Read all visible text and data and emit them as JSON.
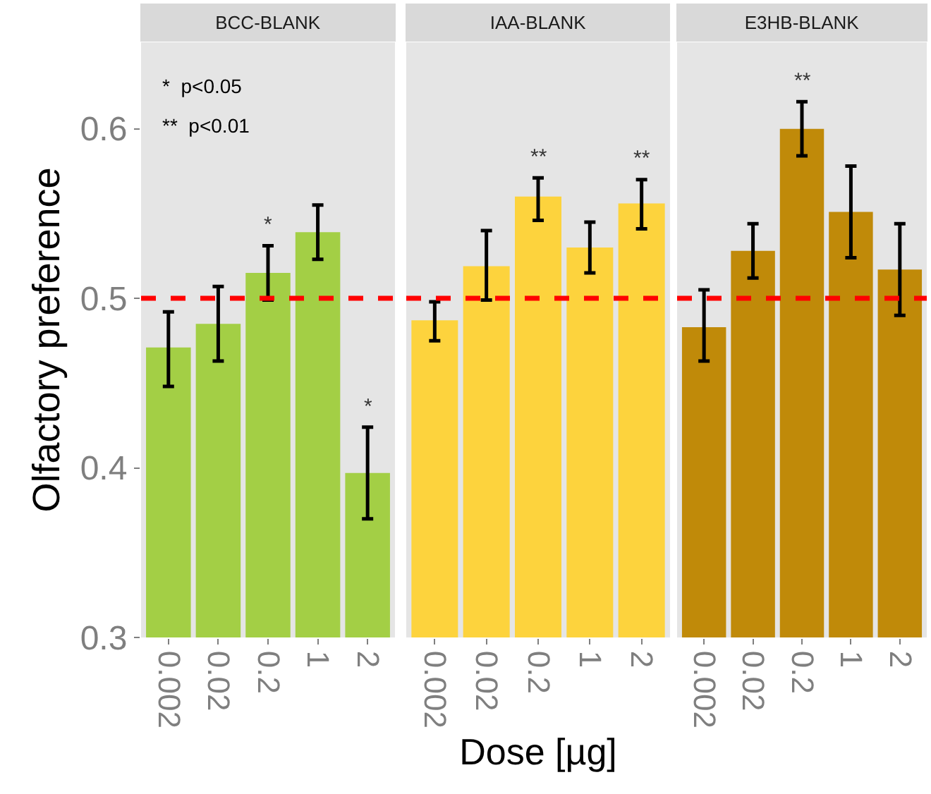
{
  "chart_data": [
    {
      "type": "bar",
      "title": "BCC-BLANK",
      "ylabel": "Olfactory preference",
      "categories": [
        "0.002",
        "0.02",
        "0.2",
        "1",
        "2"
      ],
      "values": [
        0.471,
        0.485,
        0.515,
        0.539,
        0.397
      ],
      "color": "#a3cf45",
      "errors": [
        [
          0.448,
          0.492
        ],
        [
          0.463,
          0.507
        ],
        [
          0.499,
          0.531
        ],
        [
          0.523,
          0.555
        ],
        [
          0.37,
          0.424
        ]
      ],
      "ylim": [
        0.3,
        0.651
      ],
      "yticks": [
        0.3,
        0.4,
        0.5,
        0.6
      ],
      "grid": false,
      "ref_lines": [
        {
          "axis": "y",
          "value": 0.5,
          "color": "#ff0000",
          "line_style": "dashed"
        }
      ],
      "annotations": [
        "*  p<0.05",
        "**  p<0.01",
        {
          "text": "*",
          "x": "0.2",
          "y": 0.531
        },
        {
          "text": "*",
          "x": "2",
          "y": 0.424
        }
      ]
    },
    {
      "type": "bar",
      "title": "IAA-BLANK",
      "xlabel": "Dose [µg]",
      "categories": [
        "0.002",
        "0.02",
        "0.2",
        "1",
        "2"
      ],
      "values": [
        0.487,
        0.519,
        0.56,
        0.53,
        0.556
      ],
      "color": "#fdd33d",
      "errors": [
        [
          0.475,
          0.498
        ],
        [
          0.499,
          0.54
        ],
        [
          0.546,
          0.571
        ],
        [
          0.515,
          0.545
        ],
        [
          0.541,
          0.57
        ]
      ],
      "ylim": [
        0.3,
        0.651
      ],
      "yticks": [
        0.3,
        0.4,
        0.5,
        0.6
      ],
      "grid": false,
      "tick_labels": "x",
      "ref_lines": [
        {
          "axis": "y",
          "value": 0.5,
          "color": "#ff0000",
          "line_style": "dashed"
        }
      ],
      "annotations": [
        {
          "text": "**",
          "x": "0.2",
          "y": 0.571
        },
        {
          "text": "**",
          "x": "2",
          "y": 0.57
        }
      ]
    },
    {
      "type": "bar",
      "title": "E3HB-BLANK",
      "categories": [
        "0.002",
        "0.02",
        "0.2",
        "1",
        "2"
      ],
      "values": [
        0.483,
        0.528,
        0.6,
        0.551,
        0.517
      ],
      "color": "#c08a09",
      "errors": [
        [
          0.463,
          0.505
        ],
        [
          0.512,
          0.544
        ],
        [
          0.584,
          0.616
        ],
        [
          0.524,
          0.578
        ],
        [
          0.49,
          0.544
        ]
      ],
      "ylim": [
        0.3,
        0.651
      ],
      "yticks": [
        0.3,
        0.4,
        0.5,
        0.6
      ],
      "grid": false,
      "tick_labels": "x",
      "ref_lines": [
        {
          "axis": "y",
          "value": 0.5,
          "color": "#ff0000",
          "line_style": "dashed"
        }
      ],
      "annotations": [
        {
          "text": "**",
          "x": "0.2",
          "y": 0.616
        }
      ]
    }
  ]
}
